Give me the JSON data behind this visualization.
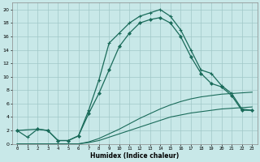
{
  "xlabel": "Humidex (Indice chaleur)",
  "xlim": [
    -0.5,
    23.5
  ],
  "ylim": [
    0,
    21
  ],
  "xticks": [
    0,
    1,
    2,
    3,
    4,
    5,
    6,
    7,
    8,
    9,
    10,
    11,
    12,
    13,
    14,
    15,
    16,
    17,
    18,
    19,
    20,
    21,
    22,
    23
  ],
  "yticks": [
    0,
    2,
    4,
    6,
    8,
    10,
    12,
    14,
    16,
    18,
    20
  ],
  "background_color": "#c8e8e8",
  "grid_color": "#a0c8c8",
  "line_color": "#1a6b5a",
  "line1_x": [
    0,
    1,
    2,
    3,
    4,
    5,
    6,
    7,
    8,
    9,
    10,
    11,
    12,
    13,
    14,
    15,
    16,
    17,
    18,
    19,
    20,
    21,
    22,
    23
  ],
  "line1_y": [
    2,
    1,
    2.2,
    2,
    0.5,
    0.5,
    1.2,
    5,
    9.5,
    15,
    16.5,
    18,
    19,
    19.5,
    20,
    19,
    17,
    14,
    11,
    10.5,
    8.7,
    7.5,
    5.2,
    5.0
  ],
  "line2_x": [
    0,
    2,
    3,
    4,
    5,
    6,
    7,
    8,
    9,
    10,
    11,
    12,
    13,
    14,
    15,
    16,
    17,
    18,
    19,
    20,
    21,
    22,
    23
  ],
  "line2_y": [
    2,
    2.2,
    2,
    0.5,
    0.5,
    1.2,
    4.5,
    7.5,
    11,
    14.5,
    16.5,
    18,
    18.5,
    18.8,
    18,
    16,
    13,
    10.5,
    9,
    8.5,
    7.2,
    5.0,
    5.0
  ],
  "line3_x": [
    0,
    1,
    2,
    3,
    4,
    5,
    6,
    7,
    8,
    9,
    10,
    11,
    12,
    13,
    14,
    15,
    16,
    17,
    18,
    19,
    20,
    21,
    22,
    23
  ],
  "line3_y": [
    0,
    0,
    0,
    0,
    0,
    0,
    0,
    0.3,
    0.8,
    1.5,
    2.2,
    3.0,
    3.8,
    4.5,
    5.2,
    5.8,
    6.3,
    6.7,
    7.0,
    7.2,
    7.4,
    7.5,
    7.6,
    7.7
  ],
  "line4_x": [
    0,
    1,
    2,
    3,
    4,
    5,
    6,
    7,
    8,
    9,
    10,
    11,
    12,
    13,
    14,
    15,
    16,
    17,
    18,
    19,
    20,
    21,
    22,
    23
  ],
  "line4_y": [
    0,
    0,
    0,
    0,
    0,
    0,
    0,
    0.2,
    0.5,
    1.0,
    1.5,
    2.0,
    2.5,
    3.0,
    3.5,
    4.0,
    4.3,
    4.6,
    4.8,
    5.0,
    5.2,
    5.3,
    5.4,
    5.5
  ]
}
